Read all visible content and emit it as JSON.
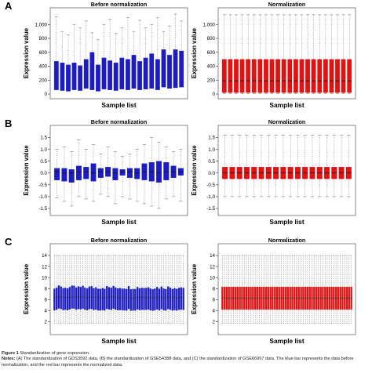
{
  "colors": {
    "before": "#1c1cc0",
    "normalized": "#e01212",
    "median": "#111111",
    "whisker": "#777777"
  },
  "panels": [
    {
      "letter": "A",
      "letter_name": "panel-a-label"
    },
    {
      "letter": "B",
      "letter_name": "panel-b-label"
    },
    {
      "letter": "C",
      "letter_name": "panel-c-label"
    }
  ],
  "caption": {
    "title_prefix": "Figure 1",
    "title_text": "Standardization of gene expression.",
    "notes_prefix": "Notes:",
    "notes_text": "(A) The standardization of GDS3592 data, (B) the standardization of GSE54388 data, and (C) the standardization of GSE66957 data. The blue bar represents the data before normalization, and the red bar represents the normalized data."
  },
  "chart_data": [
    {
      "type": "box",
      "panel": "A",
      "title": "Before normalization",
      "xlabel": "Sample list",
      "ylabel": "Expression value",
      "ylim": [
        0,
        1150
      ],
      "yticks": [
        "0",
        "200",
        "400",
        "600",
        "800",
        "1,000"
      ],
      "series_color": "before",
      "boxes": [
        {
          "q1": 60,
          "median": null,
          "q3": 470,
          "whisker_hi": 1110
        },
        {
          "q1": 50,
          "q3": 450,
          "whisker_hi": 900
        },
        {
          "q1": 40,
          "q3": 420,
          "whisker_hi": 850
        },
        {
          "q1": 60,
          "q3": 450,
          "whisker_hi": 1000
        },
        {
          "q1": 50,
          "q3": 410,
          "whisker_hi": 950
        },
        {
          "q1": 80,
          "q3": 500,
          "whisker_hi": 1050
        },
        {
          "q1": 60,
          "q3": 600,
          "whisker_hi": 880
        },
        {
          "q1": 40,
          "q3": 420,
          "whisker_hi": 780
        },
        {
          "q1": 70,
          "q3": 520,
          "whisker_hi": 1000
        },
        {
          "q1": 60,
          "q3": 480,
          "whisker_hi": 1080
        },
        {
          "q1": 50,
          "q3": 450,
          "whisker_hi": 870
        },
        {
          "q1": 70,
          "q3": 520,
          "whisker_hi": 950
        },
        {
          "q1": 60,
          "q3": 500,
          "whisker_hi": 1100
        },
        {
          "q1": 80,
          "q3": 560,
          "whisker_hi": 900
        },
        {
          "q1": 60,
          "q3": 470,
          "whisker_hi": 1060
        },
        {
          "q1": 70,
          "q3": 520,
          "whisker_hi": 950
        },
        {
          "q1": 80,
          "q3": 580,
          "whisker_hi": 1000
        },
        {
          "q1": 60,
          "q3": 500,
          "whisker_hi": 1100
        },
        {
          "q1": 100,
          "q3": 640,
          "whisker_hi": 900
        },
        {
          "q1": 80,
          "q3": 560,
          "whisker_hi": 980
        },
        {
          "q1": 90,
          "q3": 640,
          "whisker_hi": 1150
        },
        {
          "q1": 100,
          "q3": 620,
          "whisker_hi": 1050
        }
      ]
    },
    {
      "type": "box",
      "panel": "A",
      "title": "Normalization",
      "xlabel": "Sample list",
      "ylabel": "Expression value",
      "ylim": [
        0,
        1150
      ],
      "yticks": [
        "0",
        "200",
        "400",
        "600",
        "800",
        "1,000"
      ],
      "series_color": "normalized",
      "count": 22,
      "box": {
        "whisker_lo": 5,
        "q1": 20,
        "median": 190,
        "q3": 500,
        "whisker_hi": 1140
      }
    },
    {
      "type": "box",
      "panel": "B",
      "title": "Before normalization",
      "xlabel": "Sample list",
      "ylabel": "Expression value",
      "ylim": [
        -1.6,
        1.75
      ],
      "yticks": [
        "-1.5",
        "-1.0",
        "-0.5",
        "0.0",
        "0.5",
        "1.0",
        "1.5"
      ],
      "series_color": "before",
      "boxes": [
        {
          "whisker_lo": -1.05,
          "q1": -0.3,
          "median": 0.05,
          "q3": 0.2,
          "whisker_hi": 1.0
        },
        {
          "whisker_lo": -1.2,
          "q1": -0.35,
          "median": 0.0,
          "q3": 0.2,
          "whisker_hi": 1.1
        },
        {
          "whisker_lo": -1.4,
          "q1": -0.4,
          "median": 0.0,
          "q3": 0.15,
          "whisker_hi": 0.9
        },
        {
          "whisker_lo": -1.0,
          "q1": -0.3,
          "median": 0.05,
          "q3": 0.3,
          "whisker_hi": 1.4
        },
        {
          "whisker_lo": -1.1,
          "q1": -0.25,
          "median": 0.05,
          "q3": 0.25,
          "whisker_hi": 1.0
        },
        {
          "whisker_lo": -1.2,
          "q1": -0.35,
          "median": 0.0,
          "q3": 0.4,
          "whisker_hi": 1.2
        },
        {
          "whisker_lo": -0.9,
          "q1": -0.2,
          "median": 0.05,
          "q3": 0.2,
          "whisker_hi": 0.8
        },
        {
          "whisker_lo": -1.0,
          "q1": -0.15,
          "median": 0.05,
          "q3": 0.25,
          "whisker_hi": 1.1
        },
        {
          "whisker_lo": -1.3,
          "q1": -0.3,
          "median": 0.0,
          "q3": 0.2,
          "whisker_hi": 0.9
        },
        {
          "whisker_lo": -1.0,
          "q1": -0.1,
          "median": 0.05,
          "q3": 0.15,
          "whisker_hi": 0.7
        },
        {
          "whisker_lo": -1.1,
          "q1": -0.2,
          "median": 0.05,
          "q3": 0.2,
          "whisker_hi": 0.8
        },
        {
          "whisker_lo": -1.2,
          "q1": -0.25,
          "median": 0.0,
          "q3": 0.2,
          "whisker_hi": 1.0
        },
        {
          "whisker_lo": -1.3,
          "q1": -0.3,
          "median": 0.05,
          "q3": 0.4,
          "whisker_hi": 1.2
        },
        {
          "whisker_lo": -1.4,
          "q1": -0.35,
          "median": 0.05,
          "q3": 0.45,
          "whisker_hi": 1.5
        },
        {
          "whisker_lo": -1.5,
          "q1": -0.4,
          "median": 0.0,
          "q3": 0.5,
          "whisker_hi": 1.3
        },
        {
          "whisker_lo": -1.1,
          "q1": -0.3,
          "median": 0.05,
          "q3": 0.45,
          "whisker_hi": 1.1
        },
        {
          "whisker_lo": -1.0,
          "q1": -0.2,
          "median": 0.05,
          "q3": 0.3,
          "whisker_hi": 0.9
        },
        {
          "whisker_lo": -1.2,
          "q1": -0.1,
          "median": 0.05,
          "q3": 0.2,
          "whisker_hi": 1.0
        }
      ]
    },
    {
      "type": "box",
      "panel": "B",
      "title": "Normalization",
      "xlabel": "Sample list",
      "ylabel": "Expression value",
      "ylim": [
        -1.6,
        1.75
      ],
      "yticks": [
        "-1.5",
        "-1.0",
        "-0.5",
        "0.0",
        "0.5",
        "1.0",
        "1.5"
      ],
      "series_color": "normalized",
      "count": 18,
      "box": {
        "whisker_lo": -1.0,
        "q1": -0.25,
        "median": 0.0,
        "q3": 0.25,
        "whisker_hi": 1.6
      }
    },
    {
      "type": "box",
      "panel": "C",
      "title": "Before normalization",
      "xlabel": "Sample list",
      "ylabel": "Expression value",
      "ylim": [
        0.5,
        15
      ],
      "yticks": [
        "2",
        "4",
        "6",
        "8",
        "10",
        "12",
        "14"
      ],
      "series_color": "before",
      "count": 60,
      "box": {
        "whisker_lo": 1.7,
        "q1": 4.2,
        "median": 6.4,
        "q3": 8.2,
        "whisker_hi": 14.0
      },
      "jitter": 0.35
    },
    {
      "type": "box",
      "panel": "C",
      "title": "Normalization",
      "xlabel": "Sample list",
      "ylabel": "Expression value",
      "ylim": [
        0.5,
        15
      ],
      "yticks": [
        "2",
        "4",
        "6",
        "8",
        "10",
        "12",
        "14"
      ],
      "series_color": "normalized",
      "count": 60,
      "box": {
        "whisker_lo": 1.7,
        "q1": 4.2,
        "median": 6.3,
        "q3": 8.3,
        "whisker_hi": 14.0
      }
    }
  ]
}
